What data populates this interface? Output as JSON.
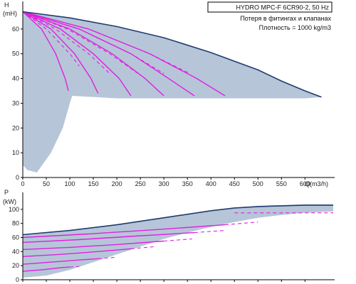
{
  "info_box": {
    "title": "HYDRO MPC-F 6CR90-2, 50 Hz",
    "line1": "Потеря в фитингах и клапанах",
    "line2": "Плотность = 1000 kg/m3"
  },
  "colors": {
    "envelope": "#b6c6d8",
    "curve_dark": "#1f3c6e",
    "curve_magenta": "#e020e0",
    "axis": "#000000"
  },
  "chart_data": [
    {
      "type": "area",
      "xlabel": "Q(m3/h)",
      "ylabel_top": "H",
      "ylabel_bottom": "(mH)",
      "xlim": [
        0,
        660
      ],
      "ylim": [
        0,
        70
      ],
      "x_ticks": [
        0,
        50,
        100,
        150,
        200,
        250,
        300,
        350,
        400,
        450,
        500,
        550,
        600
      ],
      "y_ticks": [
        0,
        10,
        20,
        30,
        40,
        50,
        60
      ],
      "grid": false,
      "envelope": [
        [
          0,
          67
        ],
        [
          100,
          64.5
        ],
        [
          200,
          61
        ],
        [
          300,
          56.5
        ],
        [
          400,
          50.5
        ],
        [
          450,
          47
        ],
        [
          500,
          43.5
        ],
        [
          550,
          39
        ],
        [
          600,
          35
        ],
        [
          635,
          32.5
        ],
        [
          600,
          32
        ],
        [
          300,
          32
        ],
        [
          200,
          32
        ],
        [
          105,
          33
        ],
        [
          100,
          30
        ],
        [
          85,
          20
        ],
        [
          60,
          10
        ],
        [
          30,
          2
        ],
        [
          10,
          3
        ],
        [
          0,
          5
        ]
      ],
      "max_curve": {
        "x": [
          0,
          100,
          200,
          300,
          400,
          450,
          500,
          550,
          600,
          635
        ],
        "y": [
          67,
          64.5,
          61,
          56.5,
          50.5,
          47,
          43.5,
          39,
          35,
          32.5
        ]
      },
      "series": [
        {
          "x": [
            0,
            40,
            70,
            90,
            97
          ],
          "y": [
            67,
            60,
            50,
            40,
            35
          ]
        },
        {
          "x": [
            0,
            60,
            110,
            145,
            160
          ],
          "y": [
            67,
            60,
            50,
            40,
            34
          ]
        },
        {
          "x": [
            0,
            80,
            150,
            205,
            230
          ],
          "y": [
            67,
            60,
            50,
            40,
            33
          ]
        },
        {
          "x": [
            0,
            100,
            190,
            260,
            300
          ],
          "y": [
            67,
            60,
            50,
            40,
            33
          ]
        },
        {
          "x": [
            0,
            120,
            230,
            310,
            365
          ],
          "y": [
            67,
            60,
            50,
            40,
            33
          ]
        },
        {
          "x": [
            0,
            140,
            270,
            370,
            430
          ],
          "y": [
            67,
            60,
            50,
            40,
            33
          ]
        }
      ],
      "dashed_series": [
        {
          "x": [
            0,
            50,
            100,
            120
          ],
          "y": [
            67,
            60,
            50,
            45
          ]
        },
        {
          "x": [
            0,
            70,
            140,
            185
          ],
          "y": [
            67,
            60,
            50,
            42
          ]
        },
        {
          "x": [
            0,
            95,
            185,
            245
          ],
          "y": [
            67,
            60,
            50,
            42
          ]
        },
        {
          "x": [
            0,
            120,
            230,
            300
          ],
          "y": [
            67,
            60,
            50,
            42
          ]
        },
        {
          "x": [
            0,
            140,
            270,
            355
          ],
          "y": [
            67,
            60,
            50,
            42
          ]
        }
      ]
    },
    {
      "type": "area",
      "xlabel": "",
      "ylabel_top": "P",
      "ylabel_bottom": "(kW)",
      "xlim": [
        0,
        660
      ],
      "ylim": [
        0,
        120
      ],
      "y_ticks": [
        0,
        20,
        40,
        60,
        80,
        100
      ],
      "grid": false,
      "envelope": [
        [
          0,
          64
        ],
        [
          100,
          70
        ],
        [
          200,
          78
        ],
        [
          300,
          88
        ],
        [
          400,
          98
        ],
        [
          450,
          102
        ],
        [
          500,
          105
        ],
        [
          550,
          106
        ],
        [
          600,
          107
        ],
        [
          660,
          107
        ],
        [
          660,
          97
        ],
        [
          600,
          95
        ],
        [
          550,
          92
        ],
        [
          500,
          88
        ],
        [
          450,
          82
        ],
        [
          400,
          75
        ],
        [
          350,
          67
        ],
        [
          300,
          58
        ],
        [
          250,
          47
        ],
        [
          200,
          36
        ],
        [
          150,
          25
        ],
        [
          100,
          14
        ],
        [
          50,
          6
        ],
        [
          0,
          3
        ]
      ],
      "max_curve": {
        "x": [
          0,
          100,
          200,
          300,
          400,
          450,
          500,
          550,
          600,
          660
        ],
        "y": [
          64,
          70,
          78,
          88,
          98,
          102,
          104,
          105,
          106,
          106
        ]
      },
      "series": [
        {
          "x": [
            0,
            40,
            80,
            100
          ],
          "y": [
            12,
            14,
            17,
            18
          ]
        },
        {
          "x": [
            0,
            60,
            120,
            160
          ],
          "y": [
            22,
            25,
            28,
            30
          ]
        },
        {
          "x": [
            0,
            80,
            160,
            230
          ],
          "y": [
            33,
            36,
            40,
            44
          ]
        },
        {
          "x": [
            0,
            100,
            200,
            300
          ],
          "y": [
            43,
            46,
            50,
            55
          ]
        },
        {
          "x": [
            0,
            120,
            240,
            365
          ],
          "y": [
            53,
            57,
            62,
            67
          ]
        },
        {
          "x": [
            0,
            140,
            280,
            430
          ],
          "y": [
            60,
            65,
            71,
            78
          ]
        }
      ],
      "dashed_series": [
        {
          "x": [
            100,
            120
          ],
          "y": [
            18,
            19
          ]
        },
        {
          "x": [
            160,
            200
          ],
          "y": [
            30,
            32
          ]
        },
        {
          "x": [
            230,
            280
          ],
          "y": [
            44,
            47
          ]
        },
        {
          "x": [
            300,
            360
          ],
          "y": [
            55,
            58
          ]
        },
        {
          "x": [
            365,
            430
          ],
          "y": [
            67,
            70
          ]
        },
        {
          "x": [
            430,
            500
          ],
          "y": [
            78,
            82
          ]
        },
        {
          "x": [
            450,
            660
          ],
          "y": [
            95,
            95
          ]
        }
      ]
    }
  ]
}
